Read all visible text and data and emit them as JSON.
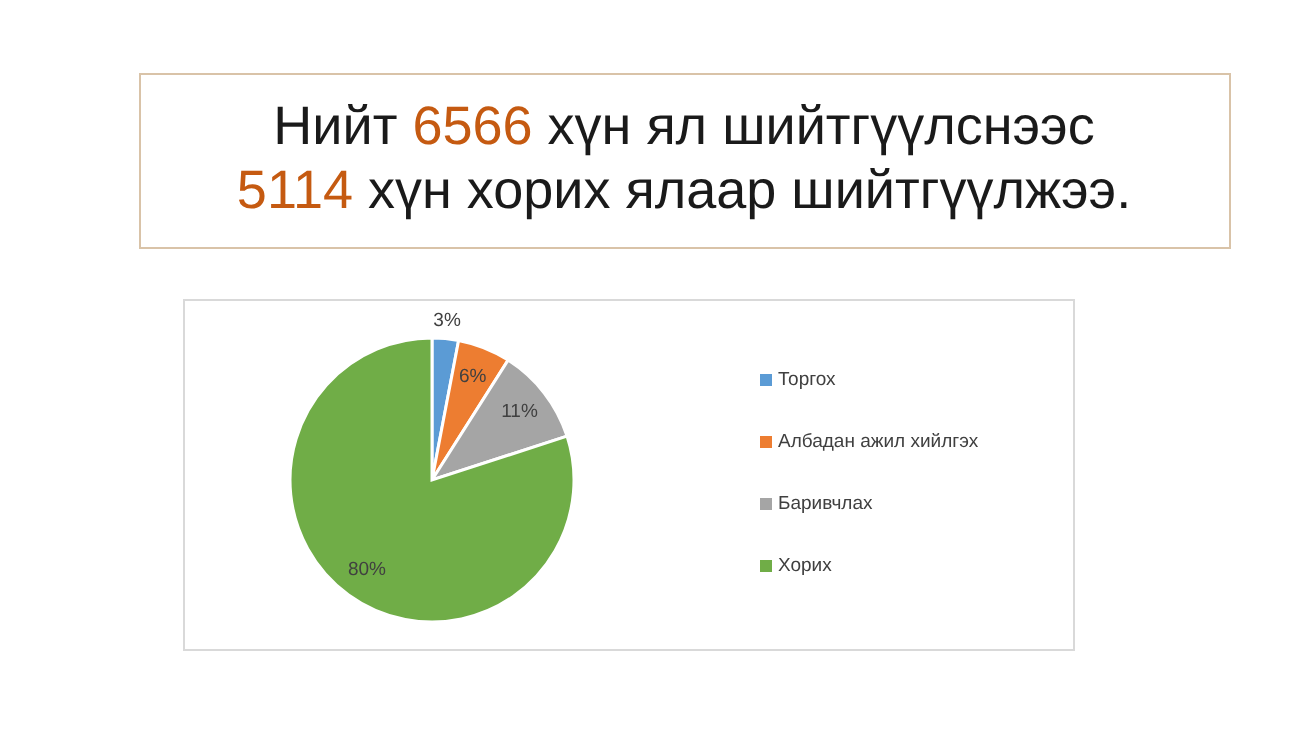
{
  "chart_data": {
    "type": "pie",
    "title": "Нийт 6566 хүн ял шийтгүүлснээс\n5114 хүн хорих ялаар шийтгүүлжээ.",
    "categories": [
      "Торгох",
      "Албадан ажил хийлгэх",
      "Баривчлах",
      "Хорих"
    ],
    "values": [
      3,
      6,
      11,
      80
    ],
    "colors": [
      "#5b9bd5",
      "#ed7d31",
      "#a5a5a5",
      "#70ad47"
    ],
    "value_labels": [
      "3%",
      "6%",
      "11%",
      "80%"
    ],
    "legend": "right"
  }
}
